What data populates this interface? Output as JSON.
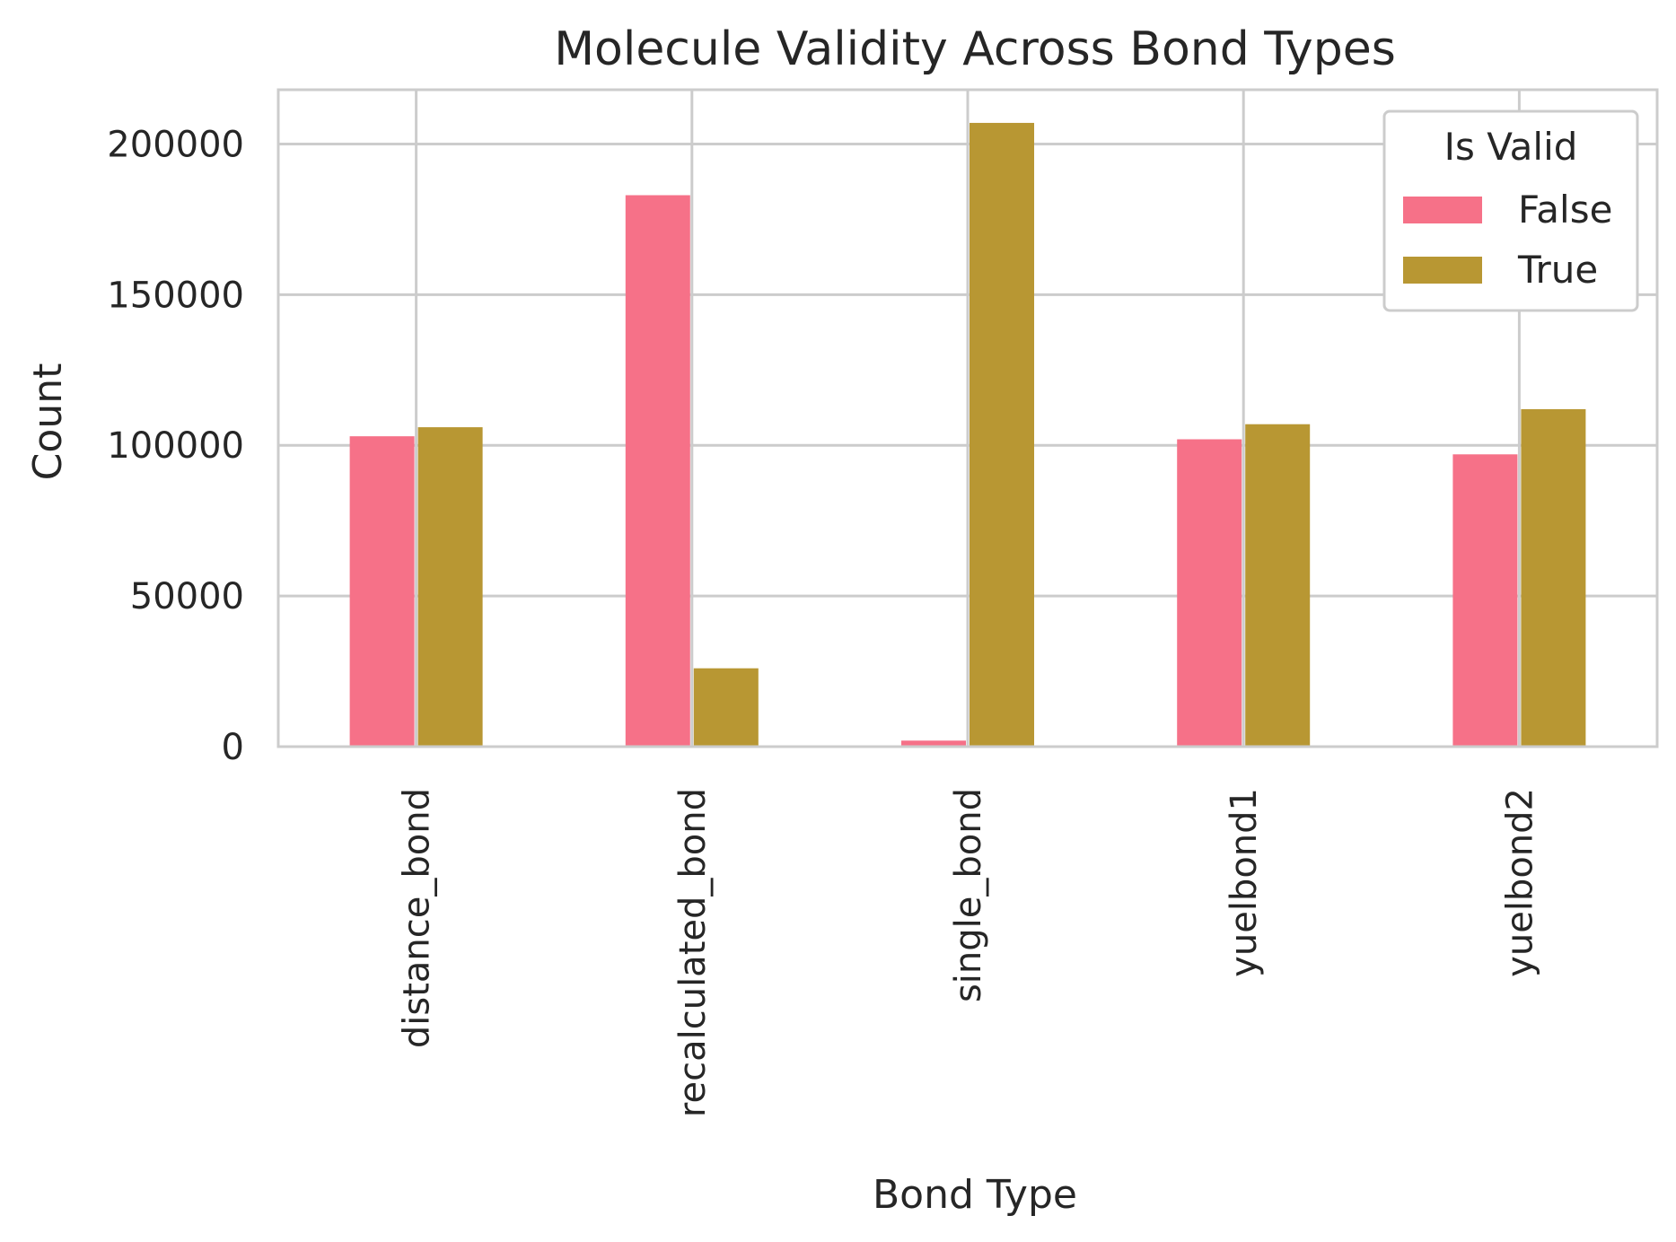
{
  "chart_data": {
    "type": "bar",
    "title": "Molecule Validity Across Bond Types",
    "xlabel": "Bond Type",
    "ylabel": "Count",
    "categories": [
      "distance_bond",
      "recalculated_bond",
      "single_bond",
      "yuelbond1",
      "yuelbond2"
    ],
    "series": [
      {
        "name": "False",
        "color": "#f67188",
        "values": [
          103000,
          183000,
          2000,
          102000,
          97000
        ]
      },
      {
        "name": "True",
        "color": "#b89733",
        "values": [
          106000,
          26000,
          207000,
          107000,
          112000
        ]
      }
    ],
    "ylim": [
      0,
      218000
    ],
    "yticks": [
      0,
      50000,
      100000,
      150000,
      200000
    ],
    "ytick_labels": [
      "0",
      "50000",
      "100000",
      "150000",
      "200000"
    ],
    "grid": true,
    "legend": {
      "title": "Is Valid",
      "placement": "top-right"
    }
  }
}
